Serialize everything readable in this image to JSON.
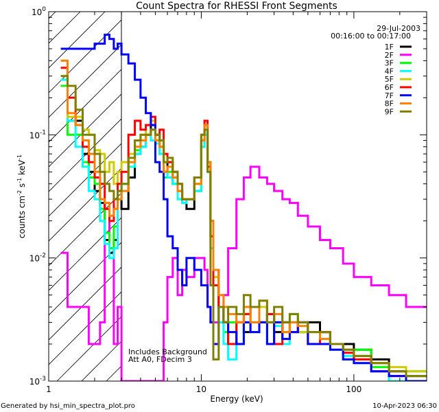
{
  "chart_data": {
    "type": "line",
    "title": "Count Spectra for RHESSI Front Segments",
    "xlabel": "Energy (keV)",
    "ylabel": {
      "base": "counts cm",
      "e1": "-2",
      "mid1": " s",
      "e2": "-1",
      "mid2": " keV",
      "e3": "-1"
    },
    "xscale": "log",
    "yscale": "log",
    "xlim": [
      1,
      300
    ],
    "ylim": [
      0.001,
      1
    ],
    "x_ticks": [
      {
        "value": 1,
        "label": "1"
      },
      {
        "value": 10,
        "label": "10"
      },
      {
        "value": 100,
        "label": "100"
      }
    ],
    "y_ticks": [
      {
        "value": 1,
        "base": "10",
        "exp": "0"
      },
      {
        "value": 0.1,
        "base": "10",
        "exp": "-1"
      },
      {
        "value": 0.01,
        "base": "10",
        "exp": "-2"
      },
      {
        "value": 0.001,
        "base": "10",
        "exp": "-3"
      }
    ],
    "shaded_region_keV": [
      1,
      3
    ],
    "date": "29-Jul-2003",
    "time_range": "00:16:00 to 00:17:00",
    "annotations": [
      "Includes Background",
      "Att A0, FDecim 3"
    ],
    "legend_placement": "top-right",
    "energy_edges": [
      1.2,
      1.33,
      1.5,
      1.67,
      1.83,
      2.0,
      2.17,
      2.33,
      2.5,
      2.67,
      2.83,
      3.0,
      3.33,
      3.67,
      4.0,
      4.33,
      4.67,
      5.0,
      5.33,
      5.67,
      6.0,
      6.5,
      7.0,
      7.5,
      8.0,
      9.0,
      10.0,
      10.5,
      11.0,
      11.5,
      12.0,
      13,
      14,
      15,
      17,
      19,
      21,
      24,
      27,
      30,
      34,
      38,
      43,
      50,
      60,
      70,
      85,
      100,
      130,
      170,
      220,
      300
    ],
    "series": [
      {
        "name": "1F",
        "color": "#000000",
        "values": [
          0.25,
          0.13,
          0.13,
          0.07,
          0.05,
          0.035,
          0.028,
          0.014,
          0.011,
          0.014,
          0.035,
          0.025,
          0.045,
          0.07,
          0.08,
          0.1,
          0.12,
          0.1,
          0.08,
          0.05,
          0.06,
          0.04,
          0.035,
          0.03,
          0.025,
          0.035,
          0.09,
          0.12,
          0.06,
          0.02,
          0.008,
          0.004,
          0.003,
          0.002,
          0.003,
          0.0025,
          0.004,
          0.003,
          0.0035,
          0.0025,
          0.003,
          0.003,
          0.0025,
          0.003,
          0.0025,
          0.002,
          0.002,
          0.0018,
          0.0015,
          0.0012,
          0.0011
        ]
      },
      {
        "name": "2F",
        "color": "#ff00ff",
        "values": [
          0.011,
          0.004,
          0.004,
          0.004,
          0.002,
          0.002,
          0.003,
          0.025,
          0.012,
          0.002,
          0.004,
          0.001,
          0.001,
          0.001,
          0.001,
          0.001,
          0.001,
          0.001,
          0.001,
          0.003,
          0.007,
          0.01,
          0.005,
          0.008,
          0.007,
          0.01,
          0.01,
          0.008,
          0.004,
          0.003,
          0.003,
          0.003,
          0.005,
          0.012,
          0.03,
          0.045,
          0.055,
          0.045,
          0.04,
          0.035,
          0.03,
          0.028,
          0.022,
          0.018,
          0.014,
          0.012,
          0.009,
          0.007,
          0.006,
          0.005,
          0.004
        ]
      },
      {
        "name": "3F",
        "color": "#00ff00",
        "values": [
          0.25,
          0.1,
          0.1,
          0.06,
          0.045,
          0.04,
          0.025,
          0.016,
          0.012,
          0.018,
          0.03,
          0.04,
          0.06,
          0.075,
          0.09,
          0.1,
          0.11,
          0.09,
          0.07,
          0.045,
          0.05,
          0.04,
          0.03,
          0.028,
          0.03,
          0.04,
          0.08,
          0.1,
          0.05,
          0.015,
          0.007,
          0.004,
          0.0025,
          0.003,
          0.002,
          0.0035,
          0.003,
          0.004,
          0.002,
          0.003,
          0.0025,
          0.0035,
          0.0025,
          0.002,
          0.0025,
          0.002,
          0.0015,
          0.0018,
          0.0013,
          0.001,
          0.0012
        ]
      },
      {
        "name": "4F",
        "color": "#00ffff",
        "values": [
          0.28,
          0.13,
          0.08,
          0.055,
          0.035,
          0.03,
          0.02,
          0.013,
          0.01,
          0.012,
          0.03,
          0.04,
          0.055,
          0.07,
          0.08,
          0.1,
          0.09,
          0.085,
          0.07,
          0.05,
          0.045,
          0.04,
          0.03,
          0.028,
          0.03,
          0.035,
          0.08,
          0.1,
          0.05,
          0.012,
          0.006,
          0.003,
          0.002,
          0.0015,
          0.002,
          0.003,
          0.0025,
          0.003,
          0.002,
          0.0028,
          0.002,
          0.003,
          0.0025,
          0.002,
          0.0022,
          0.0018,
          0.0016,
          0.0014,
          0.0012,
          0.001,
          0.0011
        ]
      },
      {
        "name": "5F",
        "color": "#cccc00",
        "values": [
          0.3,
          0.14,
          0.14,
          0.11,
          0.1,
          0.075,
          0.07,
          0.05,
          0.06,
          0.04,
          0.05,
          0.06,
          0.07,
          0.09,
          0.1,
          0.12,
          0.13,
          0.1,
          0.08,
          0.06,
          0.06,
          0.05,
          0.035,
          0.03,
          0.03,
          0.04,
          0.09,
          0.12,
          0.06,
          0.015,
          0.007,
          0.004,
          0.003,
          0.0025,
          0.003,
          0.0035,
          0.003,
          0.004,
          0.003,
          0.003,
          0.0025,
          0.003,
          0.0025,
          0.002,
          0.0025,
          0.002,
          0.0018,
          0.0015,
          0.0014,
          0.0013,
          0.0012
        ]
      },
      {
        "name": "6F",
        "color": "#ff0000",
        "values": [
          0.35,
          0.2,
          0.12,
          0.08,
          0.06,
          0.045,
          0.04,
          0.025,
          0.02,
          0.03,
          0.04,
          0.05,
          0.1,
          0.13,
          0.11,
          0.12,
          0.14,
          0.1,
          0.11,
          0.07,
          0.06,
          0.05,
          0.04,
          0.03,
          0.03,
          0.045,
          0.1,
          0.13,
          0.055,
          0.015,
          0.006,
          0.004,
          0.003,
          0.002,
          0.003,
          0.0035,
          0.004,
          0.003,
          0.0035,
          0.002,
          0.003,
          0.0025,
          0.003,
          0.002,
          0.0025,
          0.002,
          0.0017,
          0.0015,
          0.0012,
          0.0011,
          0.001
        ]
      },
      {
        "name": "7F",
        "color": "#0000ff",
        "values": [
          0.5,
          0.5,
          0.5,
          0.5,
          0.5,
          0.55,
          0.55,
          0.65,
          0.6,
          0.5,
          0.55,
          0.45,
          0.38,
          0.28,
          0.2,
          0.15,
          0.12,
          0.06,
          0.05,
          0.03,
          0.015,
          0.012,
          0.008,
          0.006,
          0.01,
          0.008,
          0.006,
          0.006,
          0.004,
          0.003,
          0.002,
          0.004,
          0.003,
          0.0025,
          0.002,
          0.003,
          0.0025,
          0.003,
          0.002,
          0.003,
          0.0022,
          0.0025,
          0.003,
          0.002,
          0.002,
          0.0018,
          0.0015,
          0.0014,
          0.0012,
          0.0011,
          0.001
        ]
      },
      {
        "name": "8F",
        "color": "#ff8000",
        "values": [
          0.4,
          0.15,
          0.12,
          0.09,
          0.07,
          0.05,
          0.03,
          0.028,
          0.022,
          0.025,
          0.03,
          0.035,
          0.06,
          0.08,
          0.09,
          0.1,
          0.11,
          0.09,
          0.08,
          0.05,
          0.055,
          0.045,
          0.035,
          0.03,
          0.03,
          0.04,
          0.09,
          0.12,
          0.06,
          0.02,
          0.008,
          0.005,
          0.004,
          0.0035,
          0.003,
          0.004,
          0.003,
          0.0045,
          0.003,
          0.0035,
          0.0025,
          0.003,
          0.0028,
          0.0025,
          0.0022,
          0.002,
          0.0018,
          0.0016,
          0.0014,
          0.0012,
          0.0011
        ]
      },
      {
        "name": "9F",
        "color": "#808000",
        "values": [
          0.3,
          0.25,
          0.16,
          0.1,
          0.1,
          0.07,
          0.05,
          0.04,
          0.035,
          0.03,
          0.035,
          0.04,
          0.065,
          0.09,
          0.1,
          0.1,
          0.11,
          0.1,
          0.09,
          0.06,
          0.065,
          0.05,
          0.04,
          0.03,
          0.03,
          0.045,
          0.1,
          0.11,
          0.05,
          0.006,
          0.0015,
          0.004,
          0.003,
          0.004,
          0.0035,
          0.005,
          0.004,
          0.0045,
          0.003,
          0.004,
          0.003,
          0.0035,
          0.003,
          0.0025,
          0.0025,
          0.002,
          0.0018,
          0.0016,
          0.0014,
          0.0012,
          0.0011
        ]
      }
    ]
  },
  "footer": {
    "generated_by": "Generated by hsi_min_spectra_plot.pro",
    "timestamp": "10-Apr-2023 06:30"
  }
}
